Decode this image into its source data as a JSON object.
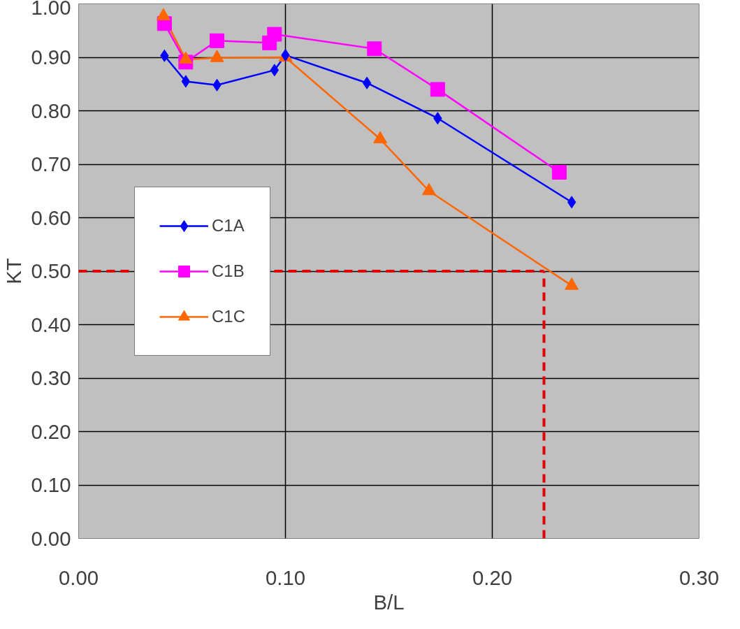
{
  "chart_data": {
    "type": "line",
    "xlabel": "B/L",
    "ylabel": "KT",
    "xlim": [
      0,
      0.3
    ],
    "xticks": [
      {
        "value": 0,
        "label": "0.00"
      },
      {
        "value": 0.1,
        "label": "0.10"
      },
      {
        "value": 0.2,
        "label": "0.20"
      },
      {
        "value": 0.3,
        "label": "0.30"
      }
    ],
    "ylim": [
      0,
      1
    ],
    "yticks": [
      {
        "value": 0,
        "label": "0.00"
      },
      {
        "value": 0.1,
        "label": "0.10"
      },
      {
        "value": 0.2,
        "label": "0.20"
      },
      {
        "value": 0.3,
        "label": "0.30"
      },
      {
        "value": 0.4,
        "label": "0.40"
      },
      {
        "value": 0.5,
        "label": "0.50"
      },
      {
        "value": 0.6,
        "label": "0.60"
      },
      {
        "value": 0.7,
        "label": "0.70"
      },
      {
        "value": 0.8,
        "label": "0.80"
      },
      {
        "value": 0.9,
        "label": "0.90"
      },
      {
        "value": 1.0,
        "label": "1.00"
      }
    ],
    "grid": true,
    "legend": "left",
    "line_style": "solid",
    "series": [
      {
        "name": "C1A",
        "color": "#0000ff",
        "marker": "diamond",
        "x": [
          0.0415,
          0.0518,
          0.0669,
          0.0947,
          0.1,
          0.1394,
          0.1736,
          0.2384
        ],
        "values": [
          0.903,
          0.855,
          0.848,
          0.876,
          0.904,
          0.852,
          0.786,
          0.629
        ]
      },
      {
        "name": "C1B",
        "color": "#ff00ff",
        "marker": "square",
        "x": [
          0.0415,
          0.0518,
          0.0669,
          0.0923,
          0.0947,
          0.143,
          0.1736,
          0.2324
        ],
        "values": [
          0.963,
          0.891,
          0.931,
          0.927,
          0.943,
          0.916,
          0.84,
          0.685
        ]
      },
      {
        "name": "C1C",
        "color": "#ff6600",
        "marker": "triangle",
        "x": [
          0.041,
          0.0518,
          0.0669,
          0.1,
          0.1458,
          0.1694,
          0.2384
        ],
        "values": [
          0.977,
          0.896,
          0.899,
          0.9,
          0.747,
          0.65,
          0.473
        ]
      }
    ],
    "ref_lines": [
      {
        "axis": "y",
        "value": 0.5,
        "label": null,
        "color": "#e00000",
        "line_style": "dashed"
      },
      {
        "axis": "x",
        "value": 0.225,
        "label": null,
        "color": "#e00000",
        "line_style": "dashed"
      }
    ]
  }
}
